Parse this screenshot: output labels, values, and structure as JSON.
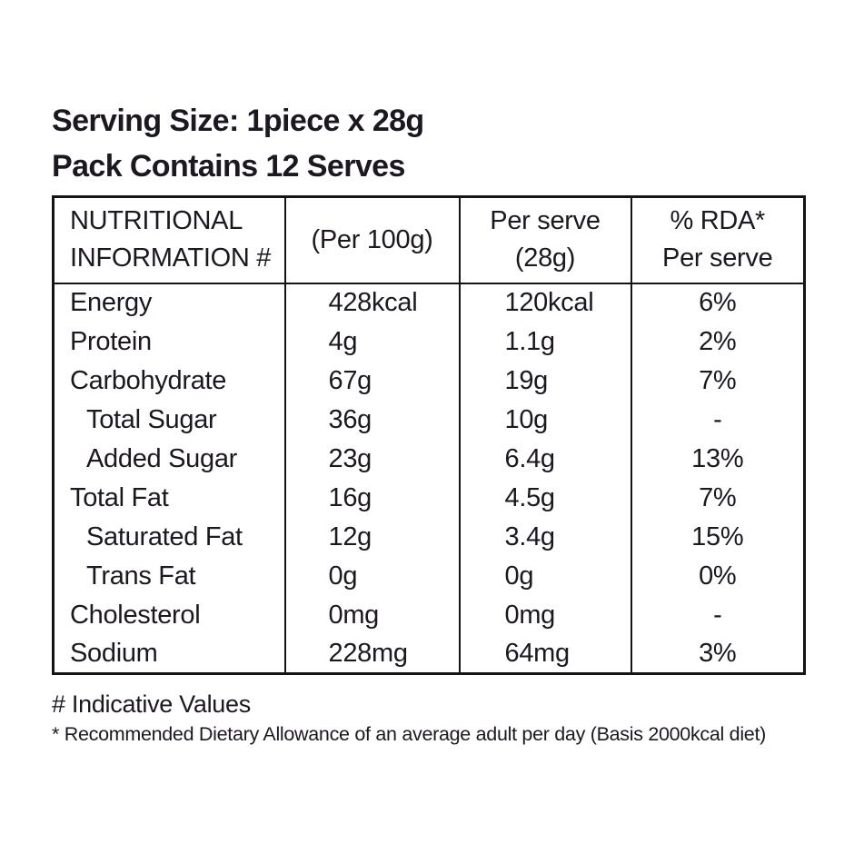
{
  "page": {
    "serving_size_line": "Serving Size: 1piece x 28g",
    "pack_contains_line": "Pack Contains 12 Serves"
  },
  "table": {
    "headers": {
      "col1_line1": "NUTRITIONAL",
      "col1_line2": "INFORMATION #",
      "col2": "(Per 100g)",
      "col3_line1": "Per serve",
      "col3_line2": "(28g)",
      "col4_line1": "% RDA*",
      "col4_line2": "Per serve"
    },
    "rows": [
      {
        "label": "Energy",
        "per_100g": "428kcal",
        "per_serve": "120kcal",
        "rda_per_serve": "6%"
      },
      {
        "label": "Protein",
        "per_100g": "4g",
        "per_serve": "1.1g",
        "rda_per_serve": "2%"
      },
      {
        "label": "Carbohydrate",
        "per_100g": "67g",
        "per_serve": "19g",
        "rda_per_serve": "7%"
      },
      {
        "label": "Total Sugar",
        "per_100g": "36g",
        "per_serve": "10g",
        "rda_per_serve": "-",
        "indent": true
      },
      {
        "label": "Added Sugar",
        "per_100g": "23g",
        "per_serve": "6.4g",
        "rda_per_serve": "13%",
        "indent": true
      },
      {
        "label": "Total Fat",
        "per_100g": "16g",
        "per_serve": "4.5g",
        "rda_per_serve": "7%"
      },
      {
        "label": "Saturated Fat",
        "per_100g": "12g",
        "per_serve": "3.4g",
        "rda_per_serve": "15%",
        "indent": true
      },
      {
        "label": "Trans Fat",
        "per_100g": "0g",
        "per_serve": "0g",
        "rda_per_serve": "0%",
        "indent": true
      },
      {
        "label": "Cholesterol",
        "per_100g": "0mg",
        "per_serve": "0mg",
        "rda_per_serve": "-"
      },
      {
        "label": "Sodium",
        "per_100g": "228mg",
        "per_serve": "64mg",
        "rda_per_serve": "3%"
      }
    ]
  },
  "footnotes": {
    "indicative_values": "# Indicative Values",
    "rda_definition": "* Recommended Dietary Allowance of an average adult per day (Basis 2000kcal diet)"
  },
  "colors": {
    "text": "#1d1722",
    "border": "#16121a",
    "background": "#ffffff"
  }
}
